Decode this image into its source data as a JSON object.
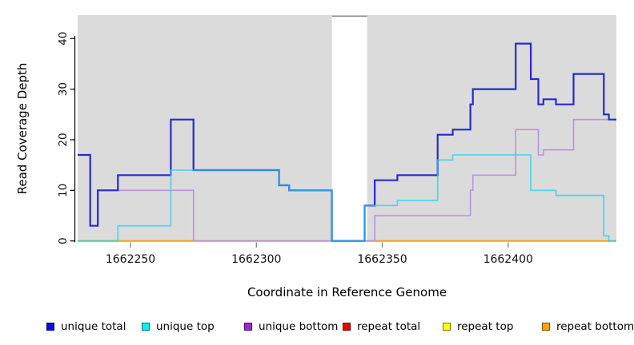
{
  "chart_data": {
    "type": "step-line",
    "title": "",
    "xlabel": "Coordinate in Reference Genome",
    "ylabel": "Read Coverage Depth",
    "x_ticks": [
      1662250,
      1662300,
      1662350,
      1662400
    ],
    "y_ticks": [
      0,
      10,
      20,
      30,
      40
    ],
    "xlim": [
      1662229,
      1662443
    ],
    "ylim": [
      0,
      44.6
    ],
    "grid": "off",
    "plot_bg": "#DBDBDB",
    "masked_region": {
      "start": 1662330,
      "end": 1662344,
      "fill": "#ffffff",
      "border": "#949494"
    },
    "draw_order": [
      "repeat total",
      "repeat top",
      "repeat bottom",
      "unique bottom",
      "unique total",
      "unique top"
    ],
    "series": [
      {
        "name": "unique total",
        "color": "#2829CF",
        "legend_color": "#0B0BEB",
        "width": 2.2,
        "opacity": 1,
        "points": [
          [
            1662229,
            17
          ],
          [
            1662234,
            3
          ],
          [
            1662237,
            10
          ],
          [
            1662245,
            13
          ],
          [
            1662266,
            24
          ],
          [
            1662275,
            14
          ],
          [
            1662309,
            11
          ],
          [
            1662313,
            10
          ],
          [
            1662330,
            0
          ],
          [
            1662343,
            7
          ],
          [
            1662347,
            12
          ],
          [
            1662356,
            13
          ],
          [
            1662372,
            21
          ],
          [
            1662378,
            22
          ],
          [
            1662385,
            27
          ],
          [
            1662386,
            30
          ],
          [
            1662403,
            39
          ],
          [
            1662409,
            32
          ],
          [
            1662412,
            27
          ],
          [
            1662414,
            28
          ],
          [
            1662419,
            27
          ],
          [
            1662426,
            33
          ],
          [
            1662438,
            25
          ],
          [
            1662440,
            24
          ]
        ]
      },
      {
        "name": "unique top",
        "color": "#1ED3EF",
        "legend_color": "#00F2FF",
        "width": 1.8,
        "opacity": 0.7,
        "points": [
          [
            1662229,
            0
          ],
          [
            1662245,
            3
          ],
          [
            1662266,
            14
          ],
          [
            1662309,
            11
          ],
          [
            1662313,
            10
          ],
          [
            1662330,
            0
          ],
          [
            1662343,
            7
          ],
          [
            1662356,
            8
          ],
          [
            1662372,
            16
          ],
          [
            1662378,
            17
          ],
          [
            1662409,
            10
          ],
          [
            1662419,
            9
          ],
          [
            1662438,
            1
          ],
          [
            1662440,
            0
          ]
        ]
      },
      {
        "name": "unique bottom",
        "color": "#B893E2",
        "legend_color": "#9A2BD1",
        "width": 1.6,
        "opacity": 1,
        "points": [
          [
            1662229,
            17
          ],
          [
            1662234,
            3
          ],
          [
            1662237,
            10
          ],
          [
            1662275,
            0
          ],
          [
            1662347,
            5
          ],
          [
            1662385,
            10
          ],
          [
            1662386,
            13
          ],
          [
            1662403,
            22
          ],
          [
            1662412,
            17
          ],
          [
            1662414,
            18
          ],
          [
            1662426,
            24
          ]
        ]
      },
      {
        "name": "repeat total",
        "color": "#E03050",
        "legend_color": "#E80000",
        "width": 1.5,
        "opacity": 1,
        "points": [
          [
            1662229,
            0
          ]
        ]
      },
      {
        "name": "repeat top",
        "color": "#FFEE00",
        "legend_color": "#FFFF00",
        "width": 1.5,
        "opacity": 1,
        "points": [
          [
            1662229,
            0
          ]
        ]
      },
      {
        "name": "repeat bottom",
        "color": "#FFA00A",
        "legend_color": "#FFA500",
        "width": 1.8,
        "opacity": 1,
        "points": [
          [
            1662229,
            0
          ]
        ]
      }
    ]
  },
  "legend": {
    "items": [
      {
        "label": "unique total",
        "color": "#0B0BEB"
      },
      {
        "label": "unique top",
        "color": "#00F2FF"
      },
      {
        "label": "unique bottom",
        "color": "#9A2BD1"
      },
      {
        "label": "repeat total",
        "color": "#E80000"
      },
      {
        "label": "repeat top",
        "color": "#FFFF00"
      },
      {
        "label": "repeat bottom",
        "color": "#FFA500"
      }
    ]
  }
}
